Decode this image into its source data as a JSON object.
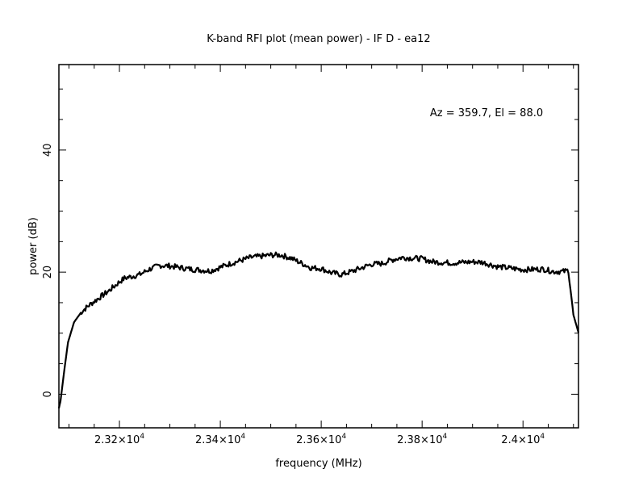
{
  "chart_data": {
    "type": "line",
    "title": "K-band RFI plot (mean power) - IF D - ea12",
    "xlabel": "frequency (MHz)",
    "ylabel": "power (dB)",
    "annotation": "Az = 359.7, El = 88.0",
    "xlim": [
      23080,
      24110
    ],
    "ylim": [
      -5.5,
      54
    ],
    "xticks": [
      {
        "value": 23200,
        "label": "2.32×10",
        "exp": "4"
      },
      {
        "value": 23400,
        "label": "2.34×10",
        "exp": "4"
      },
      {
        "value": 23600,
        "label": "2.36×10",
        "exp": "4"
      },
      {
        "value": 23800,
        "label": "2.38×10",
        "exp": "4"
      },
      {
        "value": 24000,
        "label": "2.4×10",
        "exp": "4"
      }
    ],
    "yticks": [
      {
        "value": 0,
        "label": "0"
      },
      {
        "value": 20,
        "label": "20"
      },
      {
        "value": 40,
        "label": "40"
      }
    ],
    "grid": false,
    "line_color": "#000000",
    "series": [
      {
        "x": [
          23080,
          23083,
          23090,
          23098,
          23110,
          23125,
          23140,
          23160,
          23180,
          23200,
          23210,
          23240,
          23260,
          23280,
          23300,
          23340,
          23380,
          23420,
          23460,
          23500,
          23520,
          23540,
          23560,
          23580,
          23600,
          23620,
          23640,
          23660,
          23680,
          23700,
          23720,
          23740,
          23760,
          23780,
          23800,
          23820,
          23860,
          23900,
          23920,
          23950,
          24000,
          24040,
          24060,
          24080,
          24090,
          24100,
          24110
        ],
        "y": [
          -2.3,
          -1.2,
          3.5,
          8.5,
          11.8,
          13.5,
          14.6,
          15.8,
          17.0,
          18.4,
          19.0,
          19.6,
          20.5,
          21.1,
          21.0,
          20.5,
          20.2,
          21.4,
          22.4,
          22.8,
          22.8,
          22.3,
          21.5,
          20.7,
          20.6,
          19.9,
          19.6,
          20.1,
          20.7,
          21.3,
          21.4,
          22.0,
          22.4,
          22.3,
          22.2,
          21.7,
          21.5,
          21.7,
          21.6,
          20.9,
          20.4,
          20.5,
          20.1,
          20.1,
          20.3,
          13.0,
          10.1
        ]
      }
    ]
  }
}
